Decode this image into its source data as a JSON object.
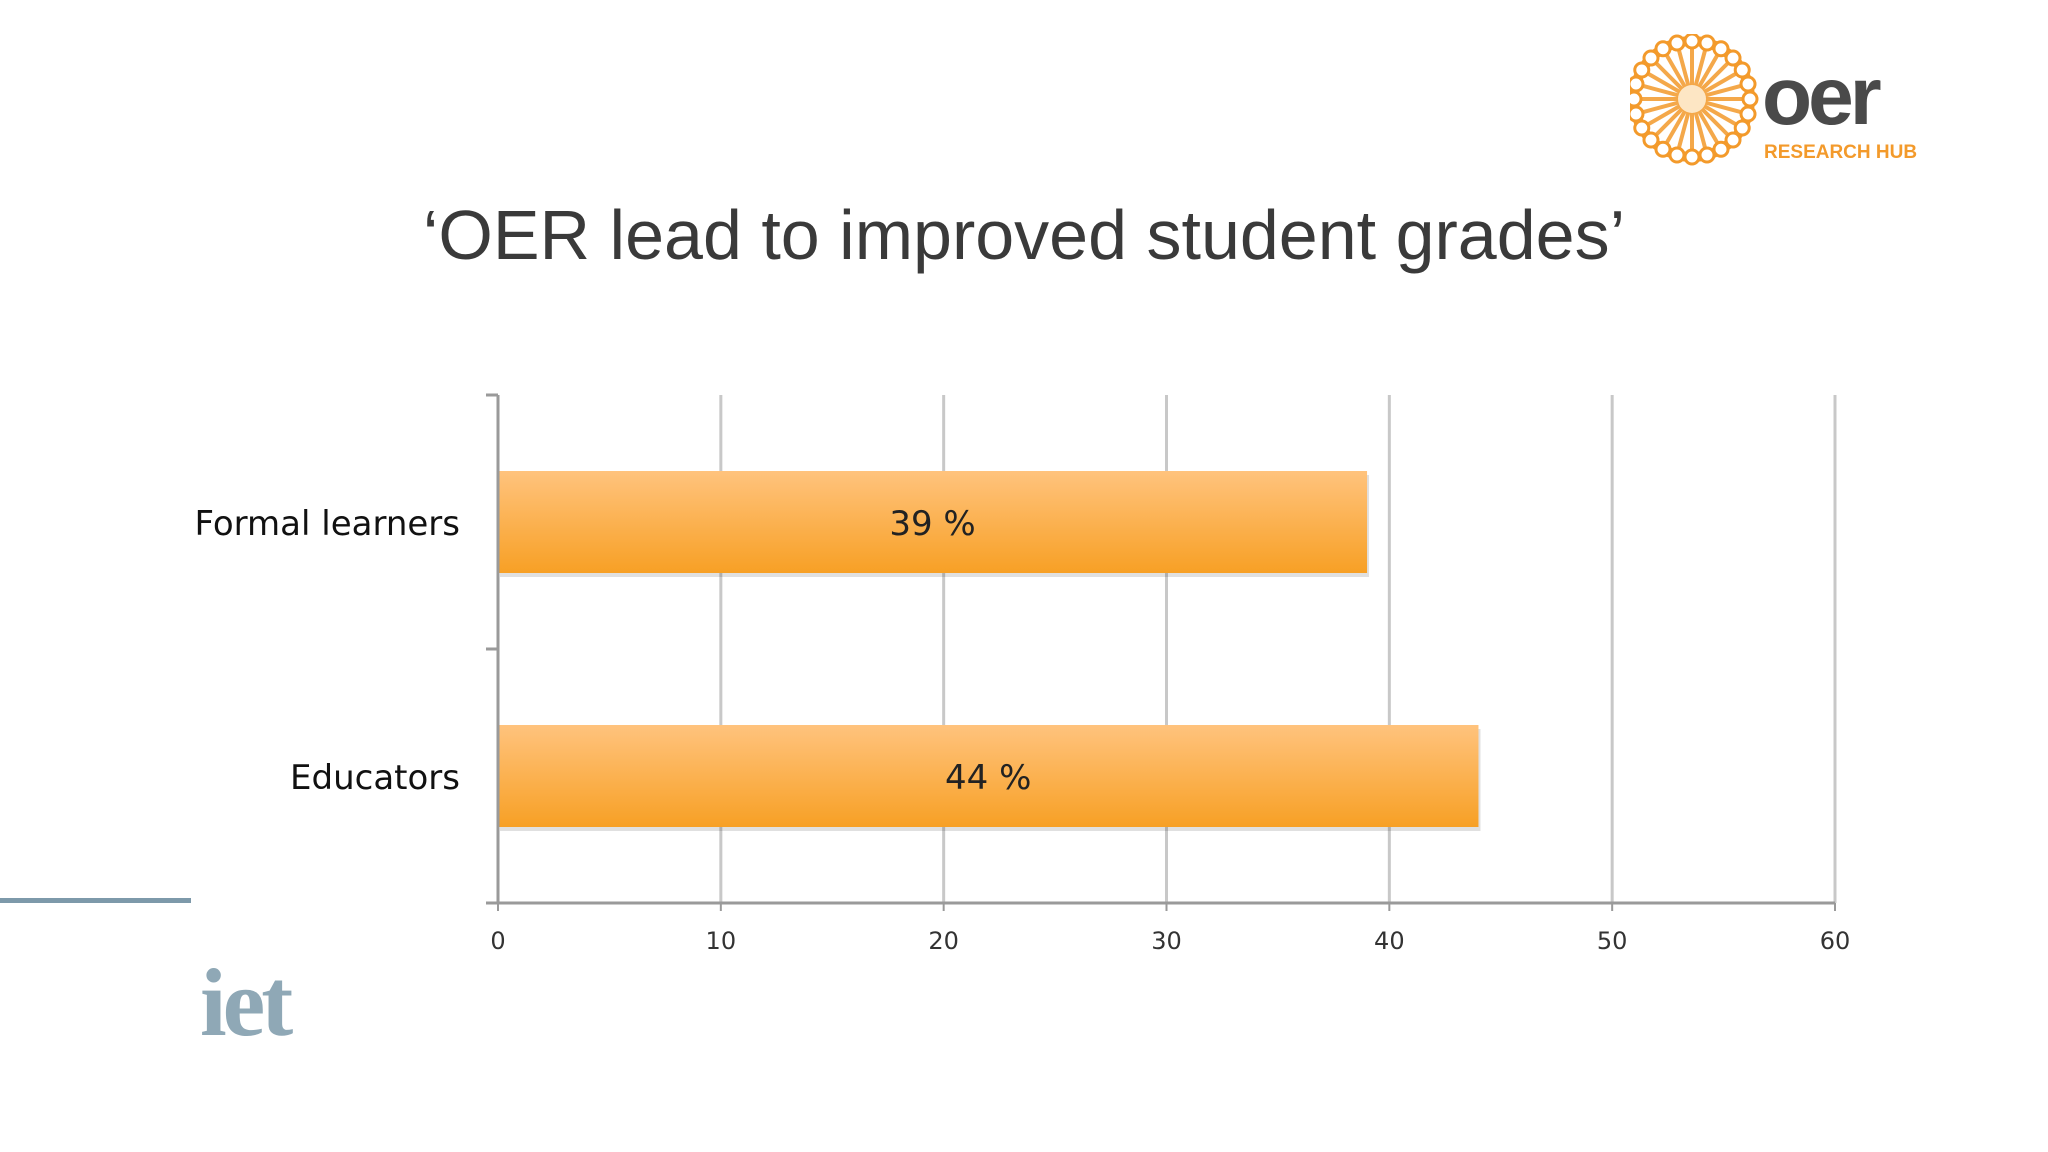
{
  "slide": {
    "title": "‘OER lead to improved student grades’"
  },
  "logos": {
    "oer": {
      "word": "oer",
      "subtitle": "RESEARCH HUB",
      "color": "#f39a2b",
      "text_color": "#4a4a4a"
    },
    "iet": {
      "word": "iet",
      "color": "#8fa8b6"
    }
  },
  "colors": {
    "bar_top": "#ffc37d",
    "bar_bottom": "#f7a025",
    "grid": "#c8c8c8",
    "axis": "#9a9a9a",
    "rule": "#7d99aa"
  },
  "chart_data": {
    "type": "bar",
    "orientation": "horizontal",
    "categories": [
      "Formal learners",
      "Educators"
    ],
    "values": [
      39,
      44
    ],
    "data_labels": [
      "39 %",
      "44 %"
    ],
    "xlim": [
      0,
      60
    ],
    "xticks": [
      0,
      10,
      20,
      30,
      40,
      50,
      60
    ],
    "grid": true,
    "legend": "none"
  }
}
